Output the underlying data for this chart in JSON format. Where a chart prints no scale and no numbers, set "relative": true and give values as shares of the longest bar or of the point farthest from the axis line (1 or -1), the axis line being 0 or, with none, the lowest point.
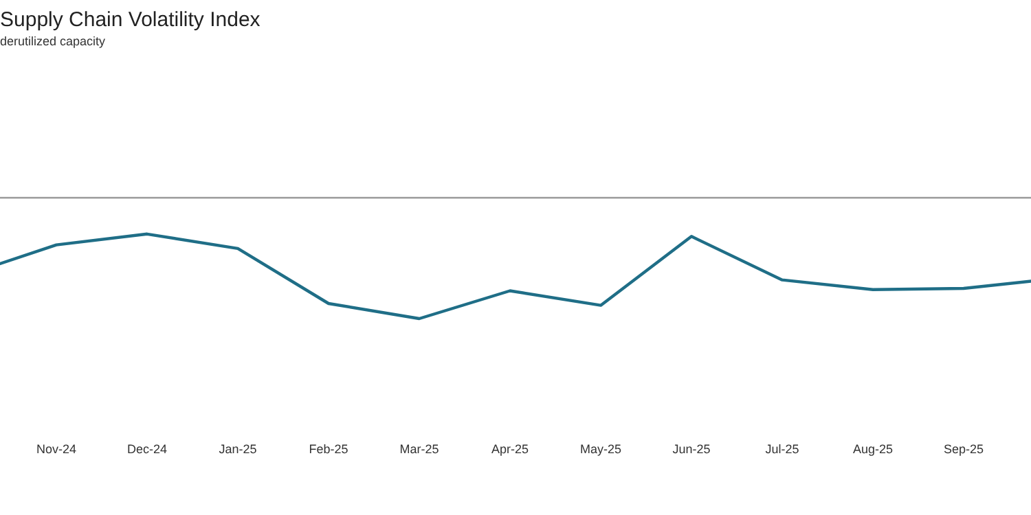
{
  "chart_data": {
    "type": "line",
    "title": "Supply Chain Volatility Index",
    "subtitle": "derutilized capacity",
    "relative": true,
    "categories": [
      null,
      "Nov-24",
      "Dec-24",
      "Jan-25",
      "Feb-25",
      "Mar-25",
      "Apr-25",
      "May-25",
      "Jun-25",
      "Jul-25",
      "Aug-25",
      "Sep-25",
      null
    ],
    "series": [
      {
        "color": "#1f6e87",
        "values": [
          -0.64,
          -0.39,
          -0.3,
          -0.42,
          -0.875,
          -1,
          -0.77,
          -0.89,
          -0.32,
          -0.68,
          -0.76,
          -0.75,
          -0.67
        ]
      }
    ],
    "marker": "none",
    "line_style": "solid"
  }
}
